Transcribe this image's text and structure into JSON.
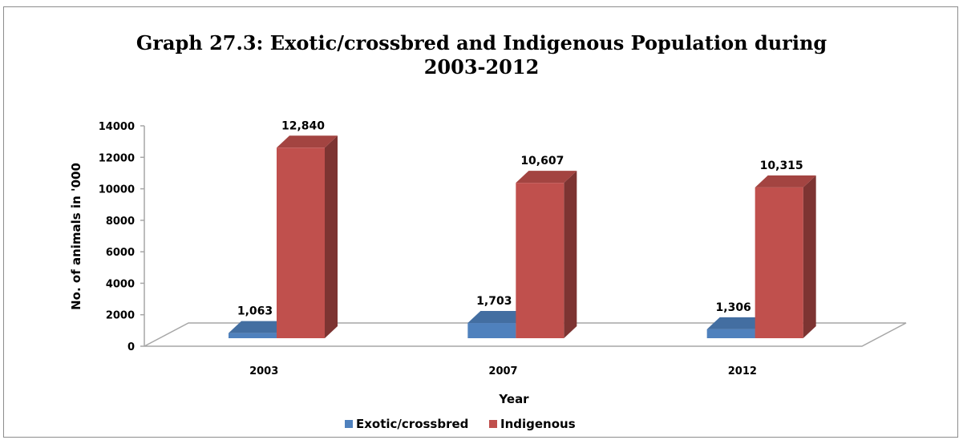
{
  "chart_data": {
    "type": "bar",
    "title_lines": [
      "Graph 27.3: Exotic/crossbred and Indigenous Population during",
      "2003-2012"
    ],
    "categories": [
      "2003",
      "2007",
      "2012"
    ],
    "series": [
      {
        "name": "Exotic/crossbred",
        "values": [
          1063,
          1703,
          1306
        ],
        "labels": [
          "1,063",
          "1,703",
          "1,306"
        ],
        "color": "#4f81bd"
      },
      {
        "name": "Indigenous",
        "values": [
          12840,
          10607,
          10315
        ],
        "labels": [
          "12,840",
          "10,607",
          "10,315"
        ],
        "color": "#c0504d"
      }
    ],
    "xlabel": "Year",
    "ylabel": "No. of animals in '000",
    "ylim": [
      0,
      14000
    ],
    "yticks": [
      0,
      2000,
      4000,
      6000,
      8000,
      10000,
      12000,
      14000
    ],
    "grid": false,
    "legend": "bottom",
    "style": "3d-column"
  }
}
